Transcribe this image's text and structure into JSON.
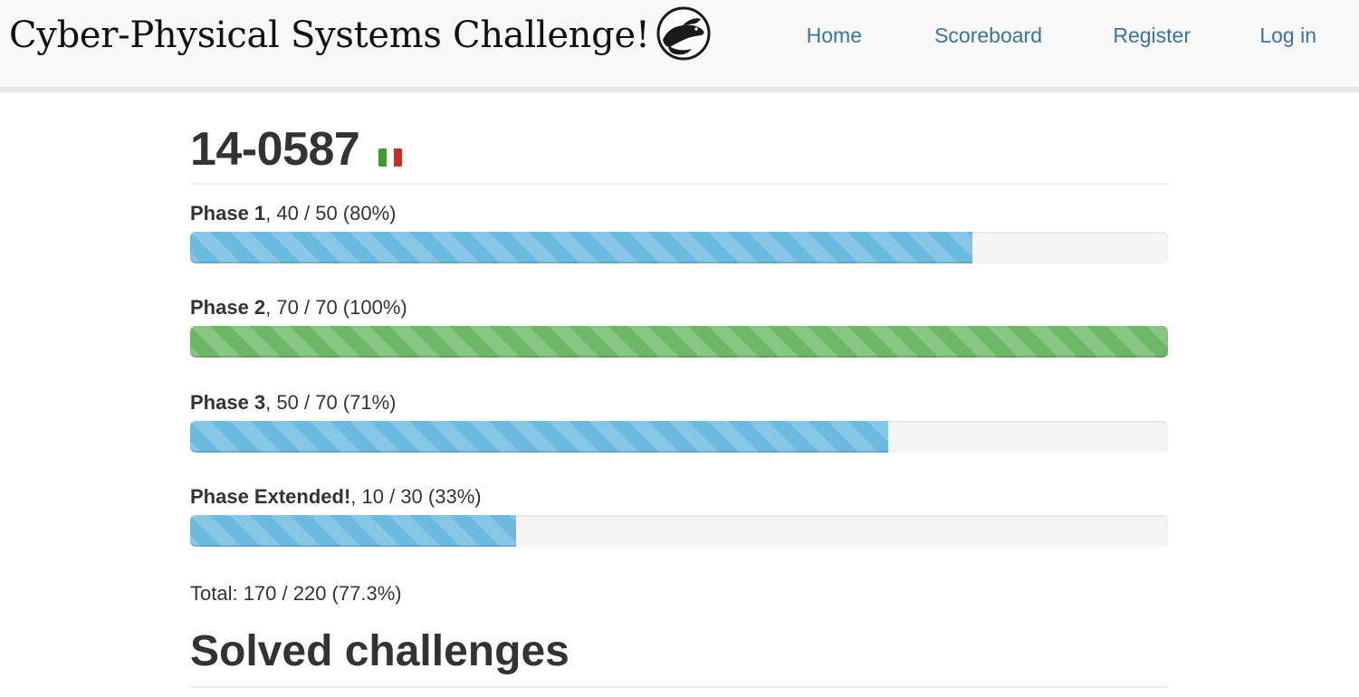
{
  "navbar": {
    "brand_title": "Cyber-Physical Systems Challenge!",
    "logo_icon": "seal-logo-icon",
    "links": [
      {
        "label": "Home"
      },
      {
        "label": "Scoreboard"
      },
      {
        "label": "Register"
      },
      {
        "label": "Log in"
      }
    ],
    "link_color": "#3a72a6"
  },
  "team": {
    "name": "14-0587",
    "flag_icon": "italy-flag-icon",
    "flag_colors": [
      "#3f9c35",
      "#ffffff",
      "#d52b1e"
    ]
  },
  "phases": [
    {
      "title": "Phase 1",
      "detail": ", 40 / 50 (80%)",
      "score": 40,
      "max": 50,
      "percent": 80,
      "color": "#6bbbe0"
    },
    {
      "title": "Phase 2",
      "detail": ", 70 / 70 (100%)",
      "score": 70,
      "max": 70,
      "percent": 100,
      "color": "#6cb866"
    },
    {
      "title": "Phase 3",
      "detail": ", 50 / 70 (71%)",
      "score": 50,
      "max": 70,
      "percent": 71,
      "color": "#6bbbe0"
    },
    {
      "title": "Phase Extended!",
      "detail": ", 10 / 30 (33%)",
      "score": 10,
      "max": 30,
      "percent": 33,
      "color": "#6bbbe0"
    }
  ],
  "total": {
    "text": "Total: 170 / 220 (77.3%)"
  },
  "solved_section": {
    "title": "Solved challenges"
  }
}
